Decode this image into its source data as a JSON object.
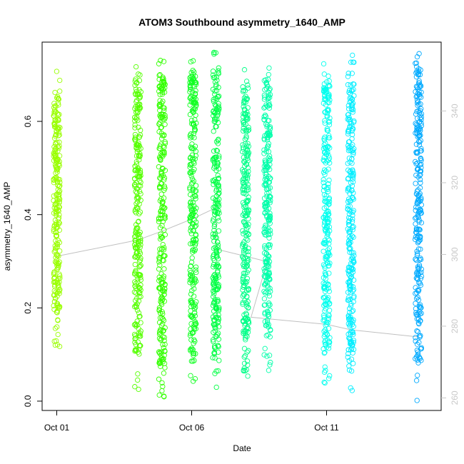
{
  "chart_data": {
    "type": "scatter",
    "title": "ATOM3 Southbound asymmetry_1640_AMP",
    "xlabel": "Date",
    "ylabel": "asymmetry_1640_AMP",
    "ylim": [
      -0.02,
      0.77
    ],
    "yticks": [
      0.0,
      0.2,
      0.4,
      0.6
    ],
    "ytick_labels": [
      "0.0",
      "0.2",
      "0.4",
      "0.6"
    ],
    "x_ticks": [
      {
        "day": 1,
        "label": "Oct 01"
      },
      {
        "day": 6,
        "label": "Oct 06"
      },
      {
        "day": 11,
        "label": "Oct 11"
      }
    ],
    "right_axis": {
      "lim": [
        256.5,
        359.2
      ],
      "ticks": [
        260,
        280,
        300,
        320,
        340
      ],
      "labels": [
        "260",
        "280",
        "300",
        "320",
        "340"
      ],
      "color": "#c8c8c8"
    },
    "grid": false,
    "legend": "none",
    "series": [
      {
        "day": 1.0,
        "ymin": 0.11,
        "ymax": 0.71,
        "color": "#99ff00"
      },
      {
        "day": 4.0,
        "ymin": 0.02,
        "ymax": 0.73,
        "color": "#55ff00"
      },
      {
        "day": 4.9,
        "ymin": 0.0,
        "ymax": 0.74,
        "color": "#33ff00"
      },
      {
        "day": 6.05,
        "ymin": 0.02,
        "ymax": 0.75,
        "color": "#11ff22"
      },
      {
        "day": 6.9,
        "ymin": 0.02,
        "ymax": 0.75,
        "color": "#00ff44"
      },
      {
        "day": 8.0,
        "ymin": 0.05,
        "ymax": 0.72,
        "color": "#00ff88"
      },
      {
        "day": 8.8,
        "ymin": 0.06,
        "ymax": 0.73,
        "color": "#00ffaa"
      },
      {
        "day": 11.0,
        "ymin": 0.03,
        "ymax": 0.73,
        "color": "#00ffee"
      },
      {
        "day": 11.9,
        "ymin": 0.01,
        "ymax": 0.75,
        "color": "#00eeff"
      },
      {
        "day": 14.4,
        "ymin": 0.0,
        "ymax": 0.75,
        "color": "#00aaff"
      }
    ],
    "line_series": {
      "color": "#c0c0c0",
      "points": [
        [
          1.0,
          299.5
        ],
        [
          4.0,
          304.0
        ],
        [
          4.9,
          306.5
        ],
        [
          6.05,
          310.0
        ],
        [
          6.9,
          313.0
        ],
        [
          6.9,
          301.5
        ],
        [
          8.0,
          299.5
        ],
        [
          8.8,
          298.0
        ],
        [
          8.2,
          282.5
        ],
        [
          11.0,
          280.5
        ],
        [
          11.9,
          279.0
        ],
        [
          14.4,
          277.0
        ]
      ]
    }
  }
}
